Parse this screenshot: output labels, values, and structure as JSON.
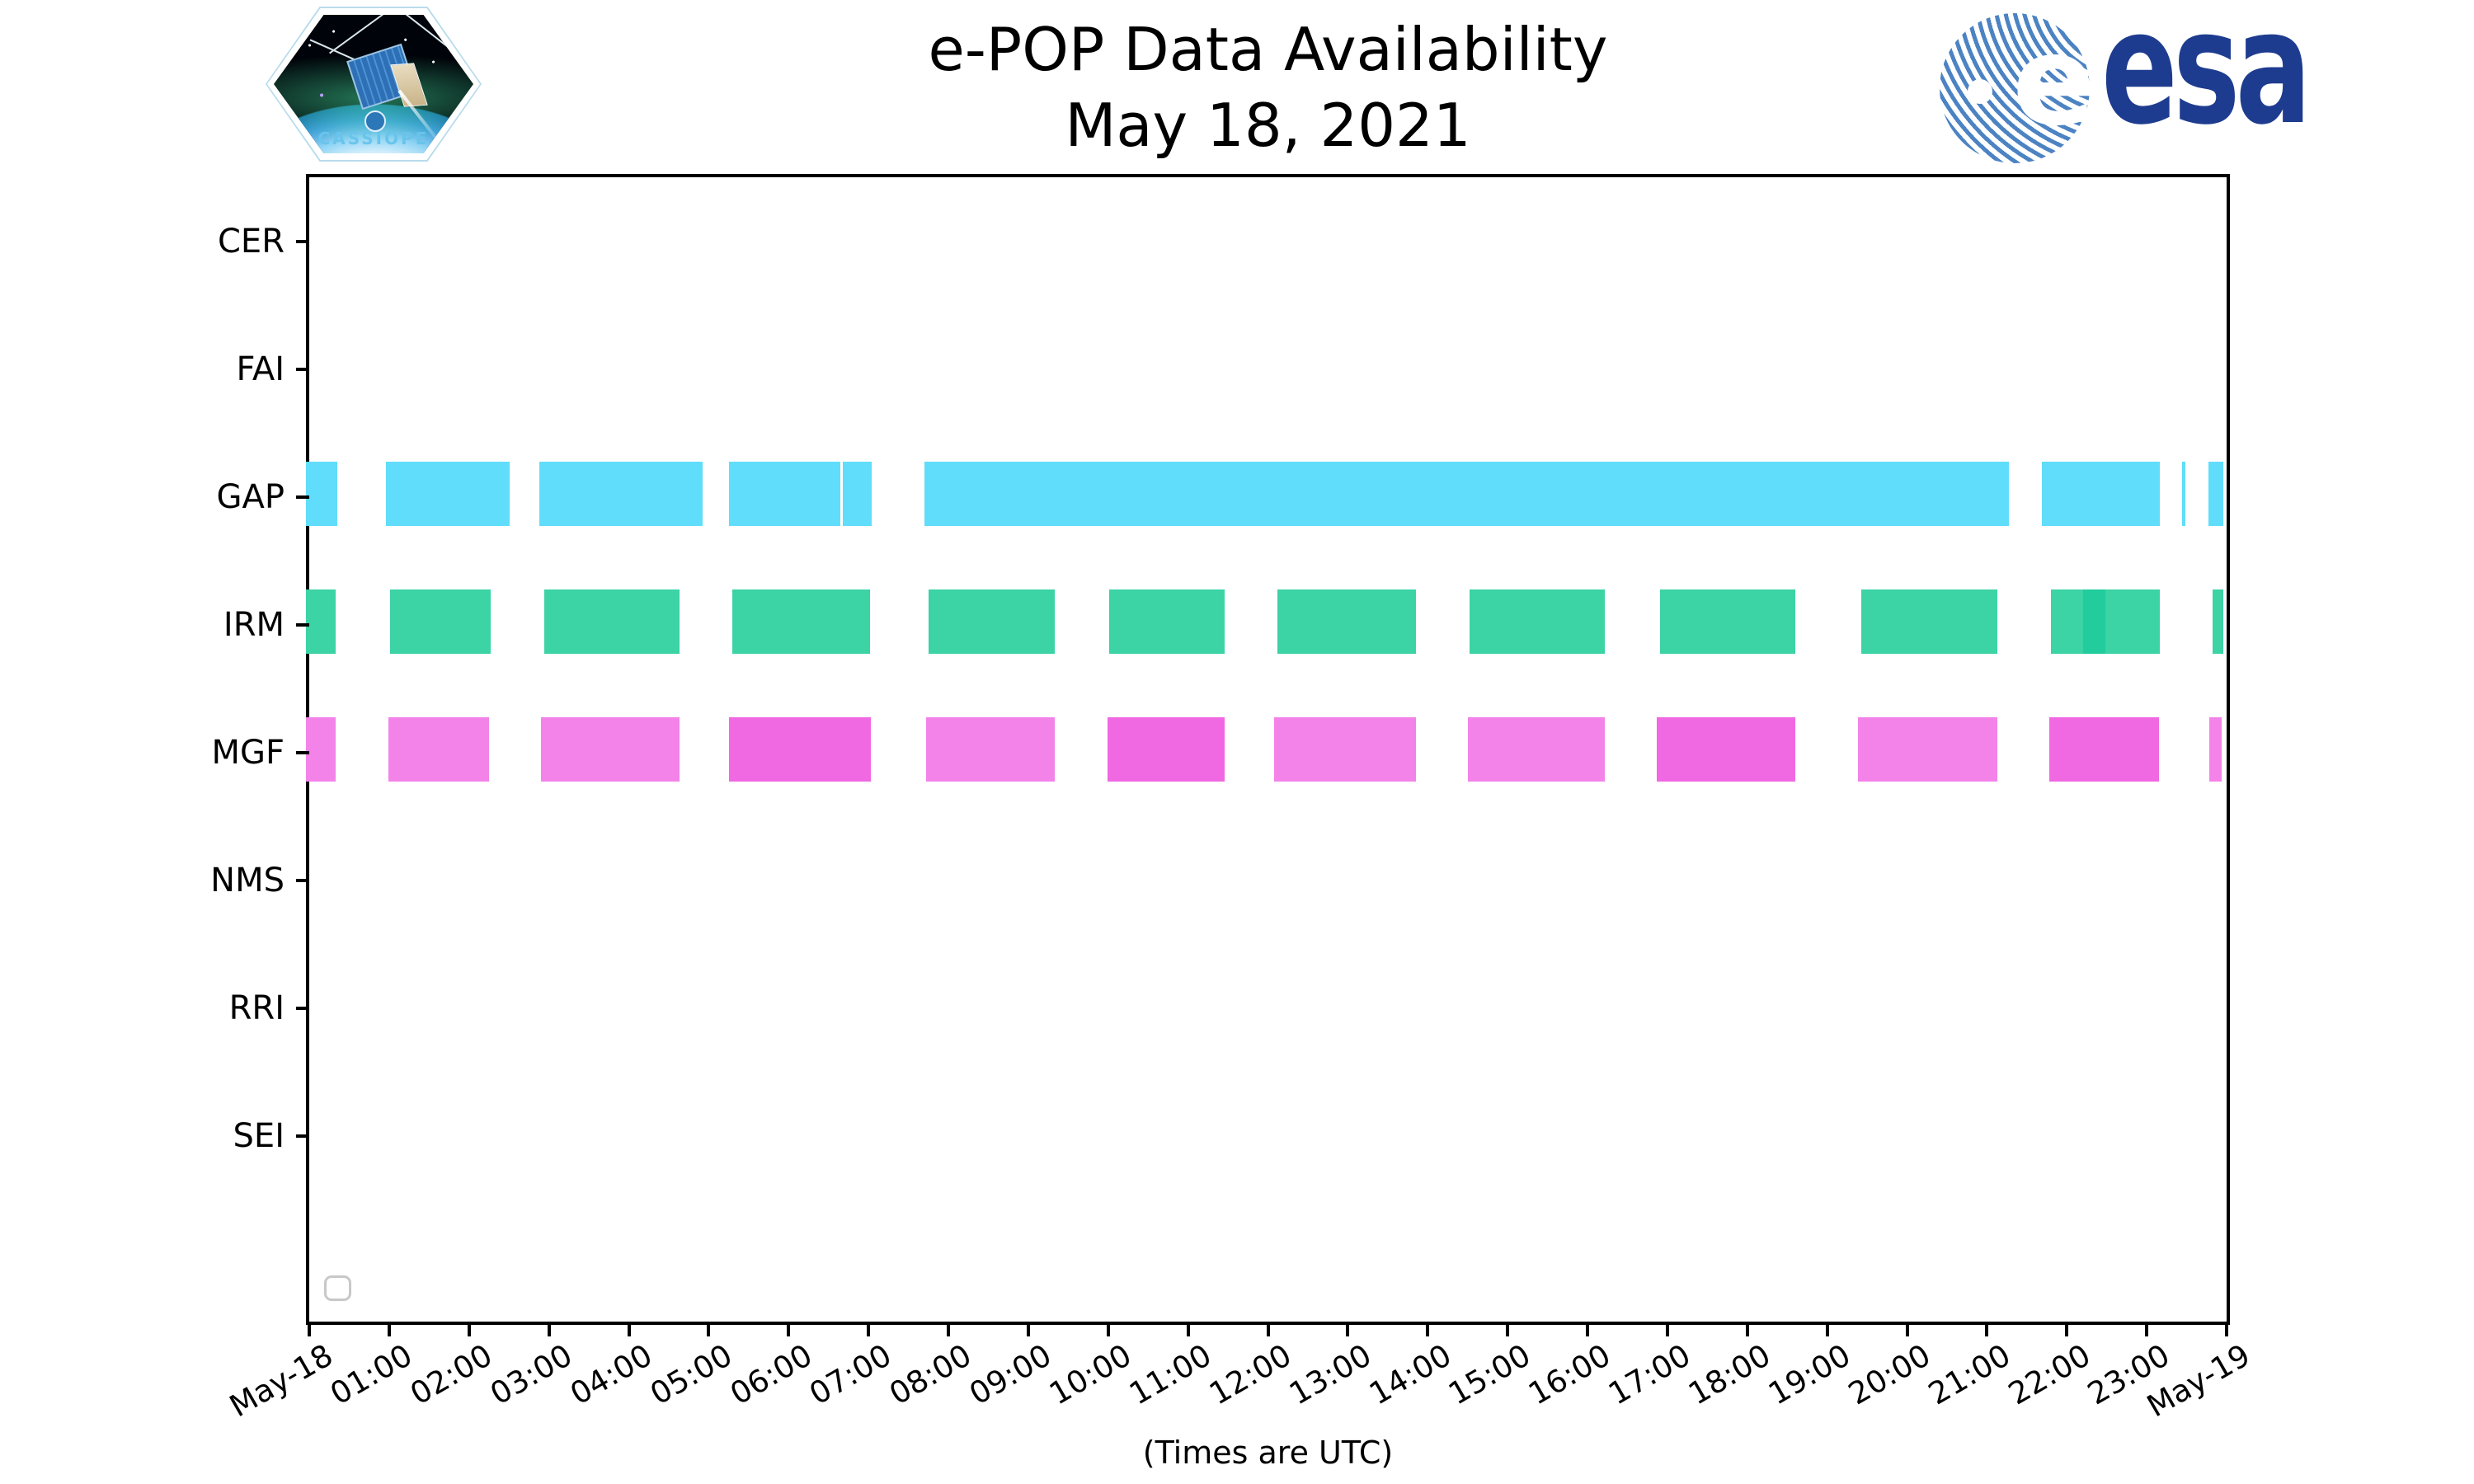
{
  "title": {
    "line1": "e-POP Data Availability",
    "line2": "May 18, 2021"
  },
  "footer_note": "(Times are UTC)",
  "logos": {
    "cassiope_patch_label": "CASSIOPE",
    "esa_wordmark": "esa",
    "esa_e_glyph": "e"
  },
  "colors": {
    "gap_bar": "#60ddfa",
    "irm_bar": "#3cd3a5",
    "irm_bar_dark": "#22cc9c",
    "mgf_bar_light": "#f383e9",
    "mgf_bar_dark": "#f068e2",
    "legend_border": "#c8c8c8",
    "esa_blue": "#1e3c8f",
    "esa_stripe_blue": "#4c83c3",
    "cassiope_text_blue": "#69c4ec",
    "axis_black": "#000000"
  },
  "axis": {
    "y_labels": [
      "CER",
      "FAI",
      "GAP",
      "IRM",
      "MGF",
      "NMS",
      "RRI",
      "SEI"
    ],
    "x_labels": [
      "May-18",
      "01:00",
      "02:00",
      "03:00",
      "04:00",
      "05:00",
      "06:00",
      "07:00",
      "08:00",
      "09:00",
      "10:00",
      "11:00",
      "12:00",
      "13:00",
      "14:00",
      "15:00",
      "16:00",
      "17:00",
      "18:00",
      "19:00",
      "20:00",
      "21:00",
      "22:00",
      "23:00",
      "May-19"
    ]
  },
  "chart_data": {
    "type": "timeline",
    "title": "e-POP Data Availability",
    "subtitle": "May 18, 2021",
    "x_axis": {
      "range_hours": [
        0,
        24
      ],
      "tick_interval_hours": 1,
      "start_label": "May-18",
      "end_label": "May-19",
      "note": "(Times are UTC)"
    },
    "y_categories": [
      "CER",
      "FAI",
      "GAP",
      "IRM",
      "MGF",
      "NMS",
      "RRI",
      "SEI"
    ],
    "legend": "empty rounded box at bottom-left of axes",
    "rows": [
      {
        "label": "CER",
        "segments": []
      },
      {
        "label": "FAI",
        "segments": []
      },
      {
        "label": "GAP",
        "segments": [
          {
            "start": 0.0,
            "end": 0.39,
            "color": "gap_bar"
          },
          {
            "start": 1.0,
            "end": 2.55,
            "color": "gap_bar"
          },
          {
            "start": 2.92,
            "end": 4.96,
            "color": "gap_bar"
          },
          {
            "start": 5.3,
            "end": 6.69,
            "color": "gap_bar"
          },
          {
            "start": 6.72,
            "end": 7.08,
            "color": "gap_bar"
          },
          {
            "start": 7.74,
            "end": 21.32,
            "color": "gap_bar"
          },
          {
            "start": 21.73,
            "end": 23.21,
            "color": "gap_bar"
          },
          {
            "start": 23.48,
            "end": 23.52,
            "color": "gap_bar"
          },
          {
            "start": 23.81,
            "end": 24.0,
            "color": "gap_bar"
          }
        ]
      },
      {
        "label": "IRM",
        "segments": [
          {
            "start": 0.0,
            "end": 0.37,
            "color": "irm_bar"
          },
          {
            "start": 1.05,
            "end": 2.31,
            "color": "irm_bar"
          },
          {
            "start": 2.98,
            "end": 4.68,
            "color": "irm_bar"
          },
          {
            "start": 5.34,
            "end": 7.06,
            "color": "irm_bar"
          },
          {
            "start": 7.79,
            "end": 9.37,
            "color": "irm_bar"
          },
          {
            "start": 10.05,
            "end": 11.5,
            "color": "irm_bar"
          },
          {
            "start": 12.16,
            "end": 13.89,
            "color": "irm_bar"
          },
          {
            "start": 14.57,
            "end": 16.26,
            "color": "irm_bar"
          },
          {
            "start": 16.95,
            "end": 18.64,
            "color": "irm_bar"
          },
          {
            "start": 19.47,
            "end": 21.17,
            "color": "irm_bar"
          },
          {
            "start": 21.84,
            "end": 23.2,
            "color": "irm_bar"
          },
          {
            "start": 22.24,
            "end": 22.52,
            "color": "irm_bar_dark"
          },
          {
            "start": 23.87,
            "end": 24.0,
            "color": "irm_bar"
          }
        ]
      },
      {
        "label": "MGF",
        "segments": [
          {
            "start": 0.0,
            "end": 0.37,
            "color": "mgf_bar_light"
          },
          {
            "start": 1.03,
            "end": 2.29,
            "color": "mgf_bar_light"
          },
          {
            "start": 2.94,
            "end": 4.68,
            "color": "mgf_bar_light"
          },
          {
            "start": 5.3,
            "end": 7.07,
            "color": "mgf_bar_dark"
          },
          {
            "start": 7.76,
            "end": 9.37,
            "color": "mgf_bar_light"
          },
          {
            "start": 10.03,
            "end": 11.5,
            "color": "mgf_bar_dark"
          },
          {
            "start": 12.12,
            "end": 13.89,
            "color": "mgf_bar_light"
          },
          {
            "start": 14.54,
            "end": 16.26,
            "color": "mgf_bar_light"
          },
          {
            "start": 16.91,
            "end": 18.64,
            "color": "mgf_bar_dark"
          },
          {
            "start": 19.43,
            "end": 21.17,
            "color": "mgf_bar_light"
          },
          {
            "start": 21.82,
            "end": 23.19,
            "color": "mgf_bar_dark"
          },
          {
            "start": 23.82,
            "end": 23.98,
            "color": "mgf_bar_light"
          }
        ]
      },
      {
        "label": "NMS",
        "segments": []
      },
      {
        "label": "RRI",
        "segments": []
      },
      {
        "label": "SEI",
        "segments": []
      }
    ]
  }
}
